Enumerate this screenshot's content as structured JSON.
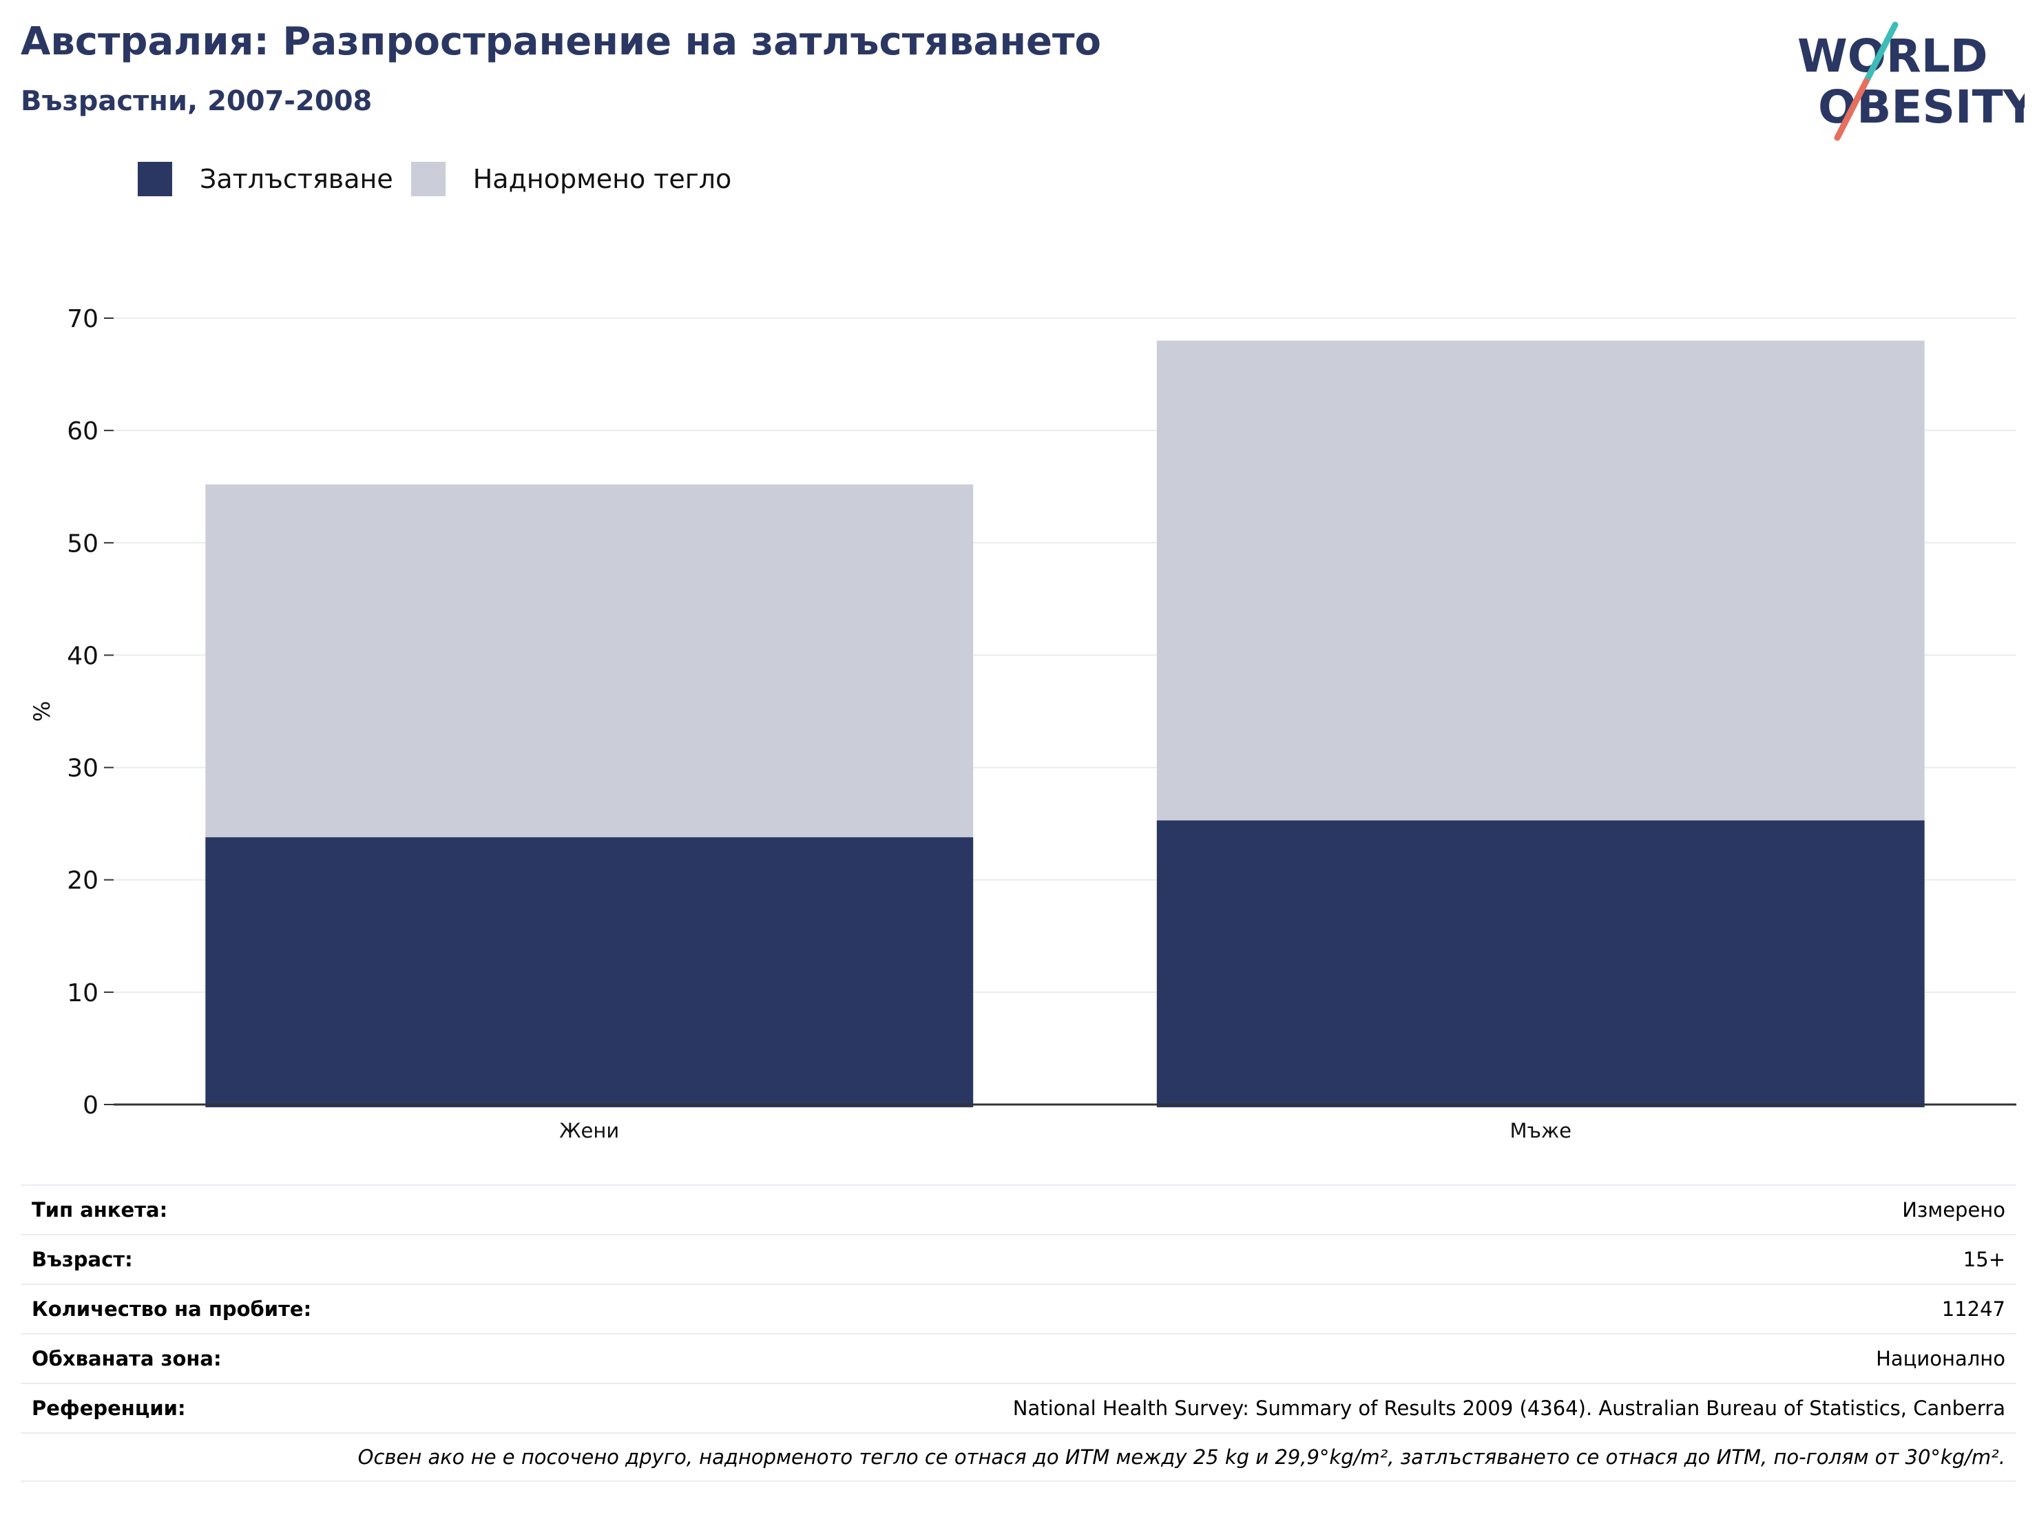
{
  "header": {
    "title": "Австралия: Разпространение на затлъстяването",
    "subtitle": "Възрастни, 2007-2008"
  },
  "logo": {
    "line1": "WORLD",
    "line2": "OBESITY",
    "colors": {
      "text": "#2b3763",
      "slash_top": "#3dbcb8",
      "slash_bottom": "#e5705d"
    }
  },
  "colors": {
    "obesity": "#2b3763",
    "overweight": "#cbcdd8",
    "title": "#2b3763",
    "grid": "#e8ecf0",
    "axis": "#333333"
  },
  "chart_data": {
    "type": "bar",
    "stacked": true,
    "title": "Австралия: Разпространение на затлъстяването",
    "subtitle": "Възрастни, 2007-2008",
    "xlabel": "",
    "ylabel": "%",
    "categories": [
      "Жени",
      "Мъже"
    ],
    "series": [
      {
        "name": "Затлъстяване",
        "values": [
          23.8,
          25.3
        ]
      },
      {
        "name": "Наднормено тегло",
        "values": [
          31.4,
          42.7
        ]
      }
    ],
    "ylim": [
      0,
      70
    ],
    "yticks": [
      0,
      10,
      20,
      30,
      40,
      50,
      60,
      70
    ],
    "grid": true,
    "legend": "top-left"
  },
  "info": {
    "rows": [
      {
        "label": "Тип анкета:",
        "value": "Измерено"
      },
      {
        "label": "Възраст:",
        "value": "15+"
      },
      {
        "label": "Количество на пробите:",
        "value": "11247"
      },
      {
        "label": "Обхваната зона:",
        "value": "Национално"
      },
      {
        "label": "Референции:",
        "value": "National Health Survey: Summary of Results 2009 (4364). Australian Bureau of Statistics, Canberra"
      }
    ],
    "note": "Освен ако не е посочено друго, наднорменото тегло се отнася до ИТМ между 25 kg и 29,9°kg/m², затлъстяването се отнася до ИТМ, по-голям от 30°kg/m²."
  }
}
